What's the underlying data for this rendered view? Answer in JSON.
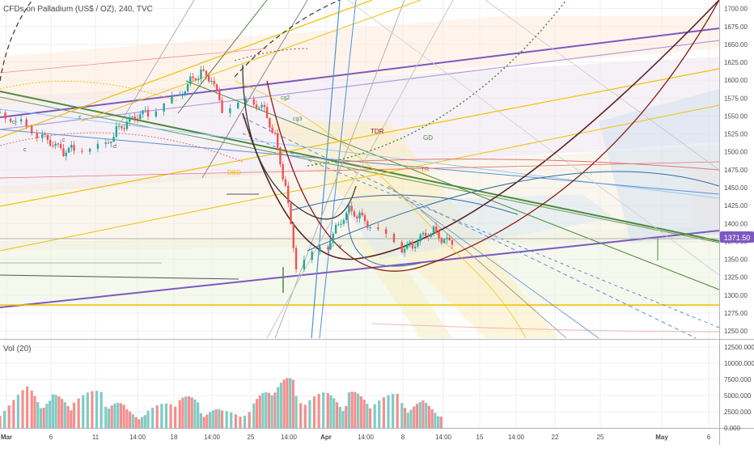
{
  "header": {
    "symbol_title": "CFDs on Palladium (US$ / OZ), 240, TVC"
  },
  "price_axis": {
    "ticks": [
      "1700.00",
      "1675.00",
      "1650.00",
      "1625.00",
      "1600.00",
      "1575.00",
      "1550.00",
      "1525.00",
      "1500.00",
      "1475.00",
      "1450.00",
      "1425.00",
      "1400.00",
      "1375.00",
      "1350.00",
      "1325.00",
      "1300.00",
      "1275.00",
      "1250.00"
    ],
    "current_price_label": "1371.50",
    "current_price_color": "#7e57c2"
  },
  "volume_pane": {
    "label": "Vol (20)",
    "ticks": [
      "12500.000",
      "10000.000",
      "7500.000",
      "5000.000",
      "2500.000",
      "0.000"
    ]
  },
  "time_axis": {
    "labels": [
      "Mar",
      "6",
      "11",
      "14:00",
      "18",
      "14:00",
      "25",
      "14:00",
      "Apr",
      "14:00",
      "8",
      "14:00",
      "15",
      "14:00",
      "22",
      "25",
      "May",
      "6"
    ]
  },
  "annotations": {
    "c_labels": [
      "c",
      "c",
      "c",
      "c",
      "d"
    ],
    "cg2": "cg2",
    "cg3": "cg3",
    "tdr": "TDR",
    "gd": "GD",
    "tr": "TR",
    "dbd": "DBD",
    "y": "y"
  },
  "colors": {
    "up": "#26a69a",
    "down": "#ef5350",
    "vol_up": "#80cbc4",
    "vol_down": "#f48f8d",
    "grid": "#eceff2",
    "purple": "#7e57c2",
    "gold": "#f2c100",
    "green_line": "#4e8a3e",
    "blue_line": "#5b8fd3",
    "dark_red": "#8b1a1a",
    "maroon": "#5a2020"
  },
  "chart_data": {
    "type": "candlestick",
    "title": "CFDs on Palladium (US$ / OZ), 240, TVC",
    "y_range": [
      1240,
      1712
    ],
    "x_range_dates": [
      "2019-03-01",
      "2019-05-08"
    ],
    "last_price": 1371.5,
    "price_series": [
      {
        "date": "2019-03-01",
        "close": 1555
      },
      {
        "date": "2019-03-03",
        "close": 1540
      },
      {
        "date": "2019-03-05",
        "close": 1520
      },
      {
        "date": "2019-03-06",
        "close": 1510
      },
      {
        "date": "2019-03-07",
        "close": 1500
      },
      {
        "date": "2019-03-08",
        "close": 1505
      },
      {
        "date": "2019-03-11",
        "close": 1510
      },
      {
        "date": "2019-03-12",
        "close": 1530
      },
      {
        "date": "2019-03-13",
        "close": 1540
      },
      {
        "date": "2019-03-14",
        "close": 1550
      },
      {
        "date": "2019-03-15",
        "close": 1555
      },
      {
        "date": "2019-03-18",
        "close": 1580
      },
      {
        "date": "2019-03-19",
        "close": 1600
      },
      {
        "date": "2019-03-20",
        "close": 1610
      },
      {
        "date": "2019-03-21",
        "close": 1600
      },
      {
        "date": "2019-03-22",
        "close": 1560
      },
      {
        "date": "2019-03-25",
        "close": 1570
      },
      {
        "date": "2019-03-26",
        "close": 1560
      },
      {
        "date": "2019-03-27",
        "close": 1520
      },
      {
        "date": "2019-03-28",
        "close": 1450
      },
      {
        "date": "2019-03-29",
        "close": 1340
      },
      {
        "date": "2019-04-01",
        "close": 1370
      },
      {
        "date": "2019-04-02",
        "close": 1400
      },
      {
        "date": "2019-04-03",
        "close": 1420
      },
      {
        "date": "2019-04-04",
        "close": 1410
      },
      {
        "date": "2019-04-05",
        "close": 1395
      },
      {
        "date": "2019-04-08",
        "close": 1365
      },
      {
        "date": "2019-04-09",
        "close": 1370
      },
      {
        "date": "2019-04-10",
        "close": 1385
      },
      {
        "date": "2019-04-11",
        "close": 1390
      },
      {
        "date": "2019-04-12",
        "close": 1375
      },
      {
        "date": "2019-04-13",
        "close": 1371.5
      }
    ],
    "volume_series": [
      {
        "date": "2019-03-01",
        "volume": 4200
      },
      {
        "date": "2019-03-04",
        "volume": 6800
      },
      {
        "date": "2019-03-06",
        "volume": 5200
      },
      {
        "date": "2019-03-08",
        "volume": 4900
      },
      {
        "date": "2019-03-11",
        "volume": 6300
      },
      {
        "date": "2019-03-13",
        "volume": 3200
      },
      {
        "date": "2019-03-15",
        "volume": 2700
      },
      {
        "date": "2019-03-18",
        "volume": 5800
      },
      {
        "date": "2019-03-20",
        "volume": 3900
      },
      {
        "date": "2019-03-22",
        "volume": 2900
      },
      {
        "date": "2019-03-25",
        "volume": 3900
      },
      {
        "date": "2019-03-27",
        "volume": 8000
      },
      {
        "date": "2019-03-29",
        "volume": 7600
      },
      {
        "date": "2019-04-01",
        "volume": 5600
      },
      {
        "date": "2019-04-03",
        "volume": 5800
      },
      {
        "date": "2019-04-05",
        "volume": 4900
      },
      {
        "date": "2019-04-08",
        "volume": 5400
      },
      {
        "date": "2019-04-10",
        "volume": 4300
      },
      {
        "date": "2019-04-12",
        "volume": 3200
      }
    ]
  }
}
